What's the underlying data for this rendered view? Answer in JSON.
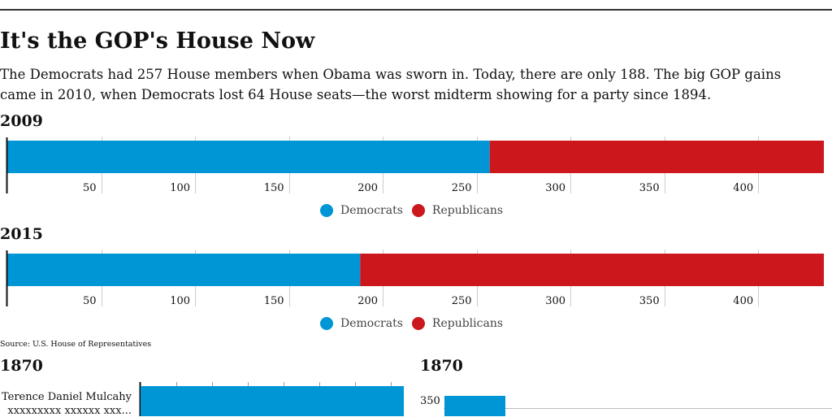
{
  "header": {
    "title": "It's the GOP's House Now",
    "dek": "The Democrats had 257 House members when Obama was sworn in. Today, there are only 188. The big GOP gains came in 2010, when Democrats lost 64 House seats—the worst midterm showing for a party since 1894."
  },
  "colors": {
    "democrats": "#0096d6",
    "republicans": "#cc171c",
    "grid": "#cccccc",
    "axis": "#111111"
  },
  "legend": {
    "democrats": "Democrats",
    "republicans": "Republicans"
  },
  "chart_data": [
    {
      "type": "bar",
      "title": "2009",
      "orientation": "horizontal",
      "stacked": true,
      "series": [
        {
          "name": "Democrats",
          "values": [
            257
          ]
        },
        {
          "name": "Republicans",
          "values": [
            178
          ]
        }
      ],
      "xlim": [
        0,
        435
      ],
      "ticks": [
        50,
        100,
        150,
        200,
        250,
        300,
        350,
        400
      ]
    },
    {
      "type": "bar",
      "title": "2015",
      "orientation": "horizontal",
      "stacked": true,
      "series": [
        {
          "name": "Democrats",
          "values": [
            188
          ]
        },
        {
          "name": "Republicans",
          "values": [
            247
          ]
        }
      ],
      "xlim": [
        0,
        435
      ],
      "ticks": [
        50,
        100,
        150,
        200,
        250,
        300,
        350,
        400
      ]
    }
  ],
  "source": "Source: U.S. House of Representatives",
  "extra": {
    "left_year": "1870",
    "right_year": "1870",
    "member_name": "Terence Daniel Mulcahy",
    "member_sub": "xxxxxxxxx xxxxxx xxx...",
    "right_tick": "350"
  }
}
